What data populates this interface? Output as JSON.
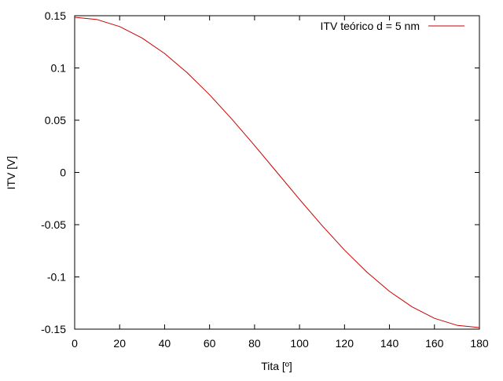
{
  "chart_data": {
    "type": "line",
    "title": "",
    "xlabel": "Tita [º]",
    "ylabel": "ITV [V]",
    "xlim": [
      0,
      180
    ],
    "ylim": [
      -0.15,
      0.15
    ],
    "grid": false,
    "legend_position": "top-right",
    "x_ticks": [
      {
        "value": 0,
        "label": "0"
      },
      {
        "value": 20,
        "label": "20"
      },
      {
        "value": 40,
        "label": "40"
      },
      {
        "value": 60,
        "label": "60"
      },
      {
        "value": 80,
        "label": "80"
      },
      {
        "value": 100,
        "label": "100"
      },
      {
        "value": 120,
        "label": "120"
      },
      {
        "value": 140,
        "label": "140"
      },
      {
        "value": 160,
        "label": "160"
      },
      {
        "value": 180,
        "label": "180"
      }
    ],
    "y_ticks": [
      {
        "value": 0.15,
        "label": "0.15"
      },
      {
        "value": 0.1,
        "label": "0.1"
      },
      {
        "value": 0.05,
        "label": "0.05"
      },
      {
        "value": 0,
        "label": "0"
      },
      {
        "value": -0.05,
        "label": "-0.05"
      },
      {
        "value": -0.1,
        "label": "-0.1"
      },
      {
        "value": -0.15,
        "label": "-0.15"
      }
    ],
    "series": [
      {
        "name": "ITV teórico d = 5 nm",
        "color": "#cc0000",
        "x": [
          0,
          10,
          20,
          30,
          40,
          50,
          60,
          70,
          80,
          90,
          100,
          110,
          120,
          130,
          140,
          150,
          160,
          170,
          180
        ],
        "y": [
          0.1485,
          0.1463,
          0.1396,
          0.1286,
          0.1138,
          0.0955,
          0.0743,
          0.0508,
          0.0258,
          0.0,
          -0.0258,
          -0.0508,
          -0.0743,
          -0.0955,
          -0.1138,
          -0.1286,
          -0.1396,
          -0.1463,
          -0.1485
        ]
      }
    ]
  }
}
